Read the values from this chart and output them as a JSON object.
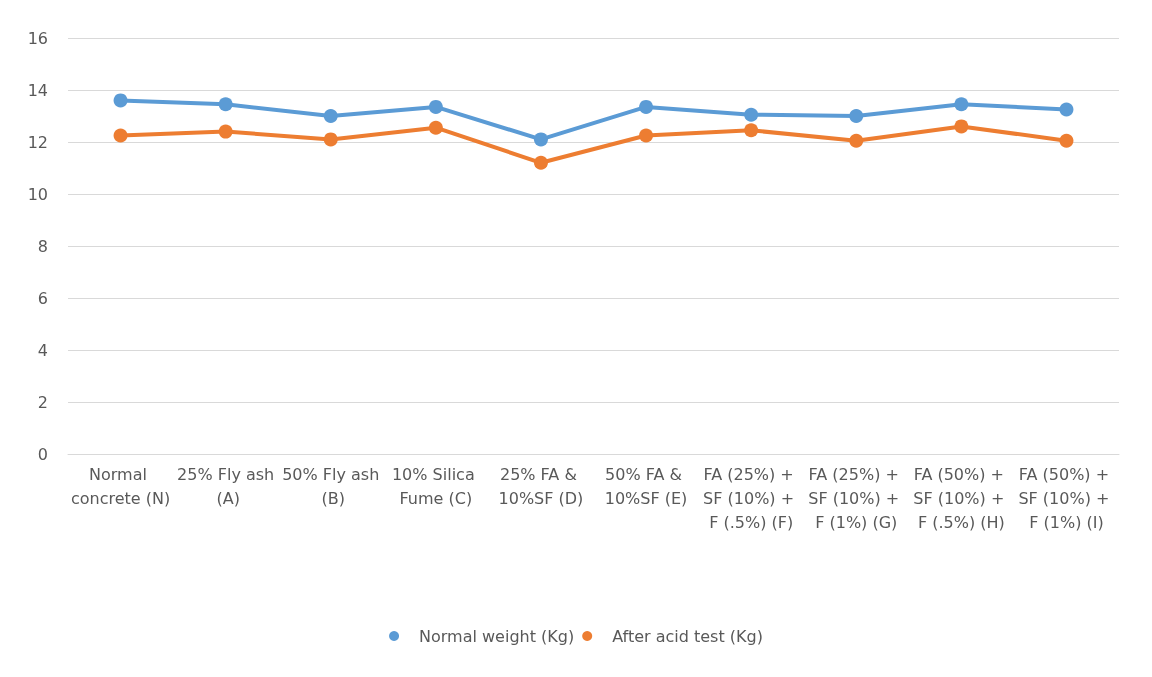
{
  "chart_data": {
    "type": "line",
    "categories": [
      "Normal concrete (N)",
      "25% Fly ash (A)",
      "50% Fly ash (B)",
      "10% Silica Fume (C)",
      "25% FA & 10%SF (D)",
      "50% FA & 10%SF (E)",
      "FA (25%) + SF (10%) + F (.5%) (F)",
      "FA (25%) + SF (10%) + F (1%) (G)",
      "FA (50%) + SF (10%) + F (.5%) (H)",
      "FA (50%) + SF (10%) + F (1%) (I)"
    ],
    "series": [
      {
        "name": "Normal weight (Kg)",
        "color": "#5b9bd5",
        "values": [
          13.6,
          13.45,
          13.0,
          13.35,
          12.1,
          13.35,
          13.05,
          13.0,
          13.45,
          13.25
        ]
      },
      {
        "name": "After acid test (Kg)",
        "color": "#ed7d31",
        "values": [
          12.25,
          12.4,
          12.1,
          12.55,
          11.2,
          12.25,
          12.45,
          12.05,
          12.6,
          12.05
        ]
      }
    ],
    "ylim": [
      0,
      16
    ],
    "yticks": [
      0,
      2,
      4,
      6,
      8,
      10,
      12,
      14,
      16
    ],
    "grid": "y",
    "legend": "bottom",
    "marker": "circle",
    "line_style": "solid"
  }
}
